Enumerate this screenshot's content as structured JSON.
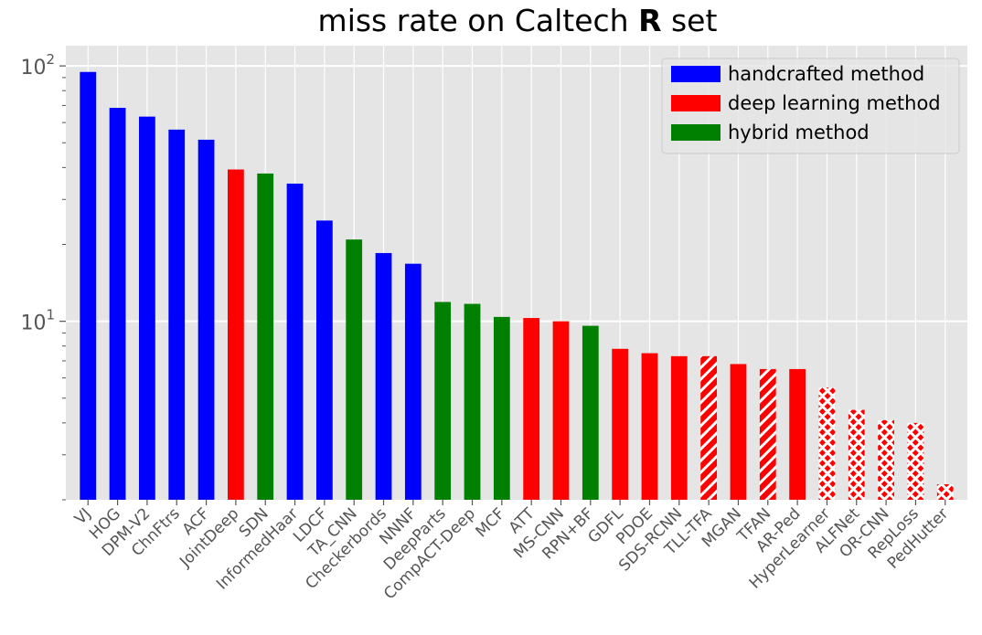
{
  "chart_data": {
    "type": "bar",
    "title": "miss rate on Caltech R set",
    "title_parts": {
      "before": "miss rate on Caltech ",
      "bold": "R",
      "after": " set"
    },
    "xlabel": "",
    "ylabel": "",
    "yscale": "log",
    "ylim": [
      2,
      120
    ],
    "yticks": [
      {
        "value": 10,
        "base": "10",
        "exp": "1"
      },
      {
        "value": 100,
        "base": "10",
        "exp": "2"
      }
    ],
    "grid": true,
    "legend_position": "top-right",
    "colors": {
      "handcrafted": "#0000ff",
      "deep": "#ff0000",
      "hybrid": "#008000",
      "background": "#e5e5e5",
      "grid": "#ffffff"
    },
    "legend": [
      {
        "key": "handcrafted",
        "label": "handcrafted method"
      },
      {
        "key": "deep",
        "label": "deep learning method"
      },
      {
        "key": "hybrid",
        "label": "hybrid method"
      }
    ],
    "bars": [
      {
        "label": "VJ",
        "value": 94.7,
        "category": "handcrafted",
        "pattern": "solid"
      },
      {
        "label": "HOG",
        "value": 68.5,
        "category": "handcrafted",
        "pattern": "solid"
      },
      {
        "label": "DPM-V2",
        "value": 63.3,
        "category": "handcrafted",
        "pattern": "solid"
      },
      {
        "label": "ChnFtrs",
        "value": 56.3,
        "category": "handcrafted",
        "pattern": "solid"
      },
      {
        "label": "ACF",
        "value": 51.4,
        "category": "handcrafted",
        "pattern": "solid"
      },
      {
        "label": "JointDeep",
        "value": 39.3,
        "category": "deep",
        "pattern": "solid"
      },
      {
        "label": "SDN",
        "value": 37.9,
        "category": "hybrid",
        "pattern": "solid"
      },
      {
        "label": "InformedHaar",
        "value": 34.6,
        "category": "handcrafted",
        "pattern": "solid"
      },
      {
        "label": "LDCF",
        "value": 24.8,
        "category": "handcrafted",
        "pattern": "solid"
      },
      {
        "label": "TA_CNN",
        "value": 20.9,
        "category": "hybrid",
        "pattern": "solid"
      },
      {
        "label": "Checkerbords",
        "value": 18.5,
        "category": "handcrafted",
        "pattern": "solid"
      },
      {
        "label": "NNNF",
        "value": 16.8,
        "category": "handcrafted",
        "pattern": "solid"
      },
      {
        "label": "DeepParts",
        "value": 11.9,
        "category": "hybrid",
        "pattern": "solid"
      },
      {
        "label": "CompACT-Deep",
        "value": 11.7,
        "category": "hybrid",
        "pattern": "solid"
      },
      {
        "label": "MCF",
        "value": 10.4,
        "category": "hybrid",
        "pattern": "solid"
      },
      {
        "label": "ATT",
        "value": 10.3,
        "category": "deep",
        "pattern": "solid"
      },
      {
        "label": "MS-CNN",
        "value": 10.0,
        "category": "deep",
        "pattern": "solid"
      },
      {
        "label": "RPN+BF",
        "value": 9.6,
        "category": "hybrid",
        "pattern": "solid"
      },
      {
        "label": "GDFL",
        "value": 7.8,
        "category": "deep",
        "pattern": "solid"
      },
      {
        "label": "PDOE",
        "value": 7.5,
        "category": "deep",
        "pattern": "solid"
      },
      {
        "label": "SDS-RCNN",
        "value": 7.3,
        "category": "deep",
        "pattern": "solid"
      },
      {
        "label": "TLL-TFA",
        "value": 7.3,
        "category": "deep",
        "pattern": "hatch"
      },
      {
        "label": "MGAN",
        "value": 6.8,
        "category": "deep",
        "pattern": "solid"
      },
      {
        "label": "TFAN",
        "value": 6.5,
        "category": "deep",
        "pattern": "hatch"
      },
      {
        "label": "AR-Ped",
        "value": 6.5,
        "category": "deep",
        "pattern": "solid"
      },
      {
        "label": "HyperLearner",
        "value": 5.5,
        "category": "deep",
        "pattern": "cross"
      },
      {
        "label": "ALFNet",
        "value": 4.5,
        "category": "deep",
        "pattern": "cross"
      },
      {
        "label": "OR-CNN",
        "value": 4.1,
        "category": "deep",
        "pattern": "cross"
      },
      {
        "label": "RepLoss",
        "value": 4.0,
        "category": "deep",
        "pattern": "cross"
      },
      {
        "label": "PedHutter",
        "value": 2.3,
        "category": "deep",
        "pattern": "cross"
      }
    ]
  }
}
